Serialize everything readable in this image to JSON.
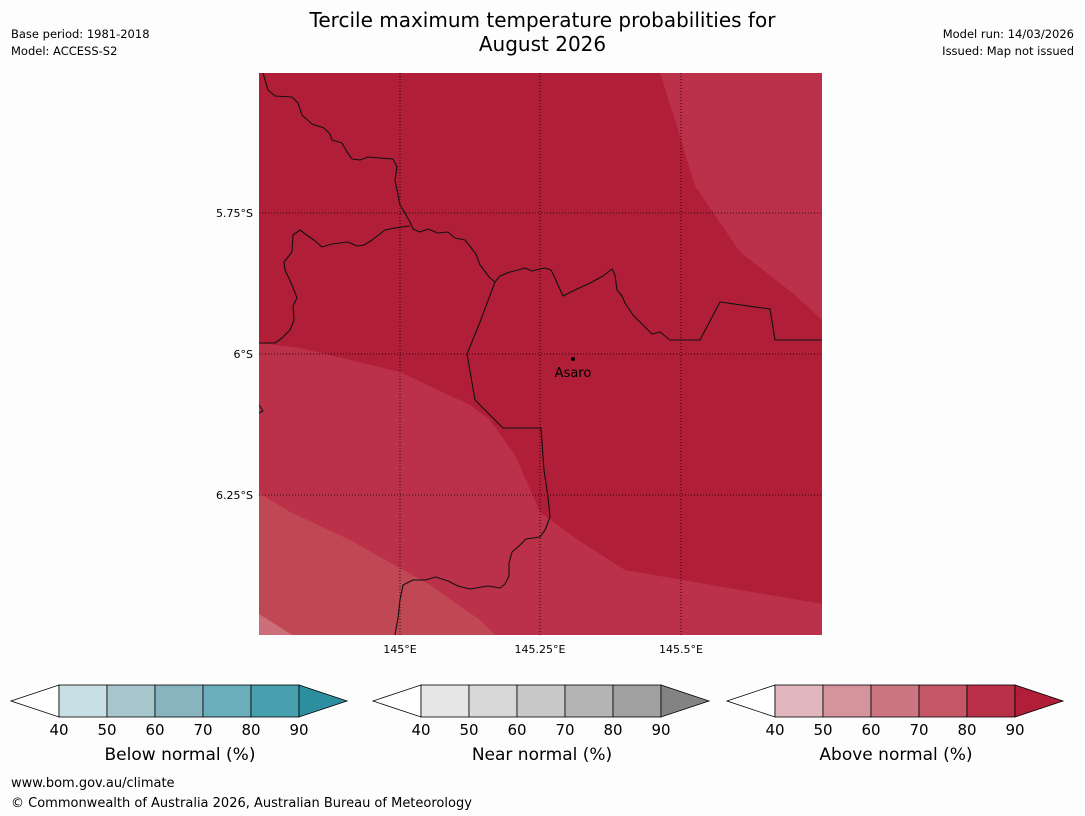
{
  "title": {
    "line1": "Tercile maximum temperature probabilities for",
    "line2": "August 2026"
  },
  "meta_left": {
    "base_period": "Base period: 1981-2018",
    "model": "Model: ACCESS-S2"
  },
  "meta_right": {
    "model_run": "Model run: 14/03/2026",
    "issued": "Issued: Map not issued"
  },
  "map": {
    "lat_labels": [
      "5.75°S",
      "6°S",
      "6.25°S"
    ],
    "lon_labels": [
      "145°E",
      "145.25°E",
      "145.5°E"
    ],
    "place": "Asaro",
    "colors": {
      "band_90": "#b01e38",
      "band_80": "#bb3149",
      "band_70": "#c04854",
      "band_60": "#cc6f7b"
    }
  },
  "colorbars": [
    {
      "title": "Below normal (%)",
      "ticks": [
        "40",
        "50",
        "60",
        "70",
        "80",
        "90"
      ],
      "colors": [
        "#c8e0e5",
        "#a7c6cb",
        "#88b4c0",
        "#6aadbb",
        "#47a0ae"
      ],
      "extend_color": "#2b8fa0"
    },
    {
      "title": "Near normal (%)",
      "ticks": [
        "40",
        "50",
        "60",
        "70",
        "80",
        "90"
      ],
      "colors": [
        "#e6e6e6",
        "#d8d8d8",
        "#c8c8c8",
        "#b4b4b4",
        "#a0a0a0"
      ],
      "extend_color": "#838383"
    },
    {
      "title": "Above normal (%)",
      "ticks": [
        "40",
        "50",
        "60",
        "70",
        "80",
        "90"
      ],
      "colors": [
        "#e1b7bd",
        "#d5939b",
        "#cb7680",
        "#c45666",
        "#ba3049"
      ],
      "extend_color": "#b01e38"
    }
  ],
  "footer": {
    "url": "www.bom.gov.au/climate",
    "copyright": "© Commonwealth of Australia 2026, Australian Bureau of Meteorology"
  }
}
